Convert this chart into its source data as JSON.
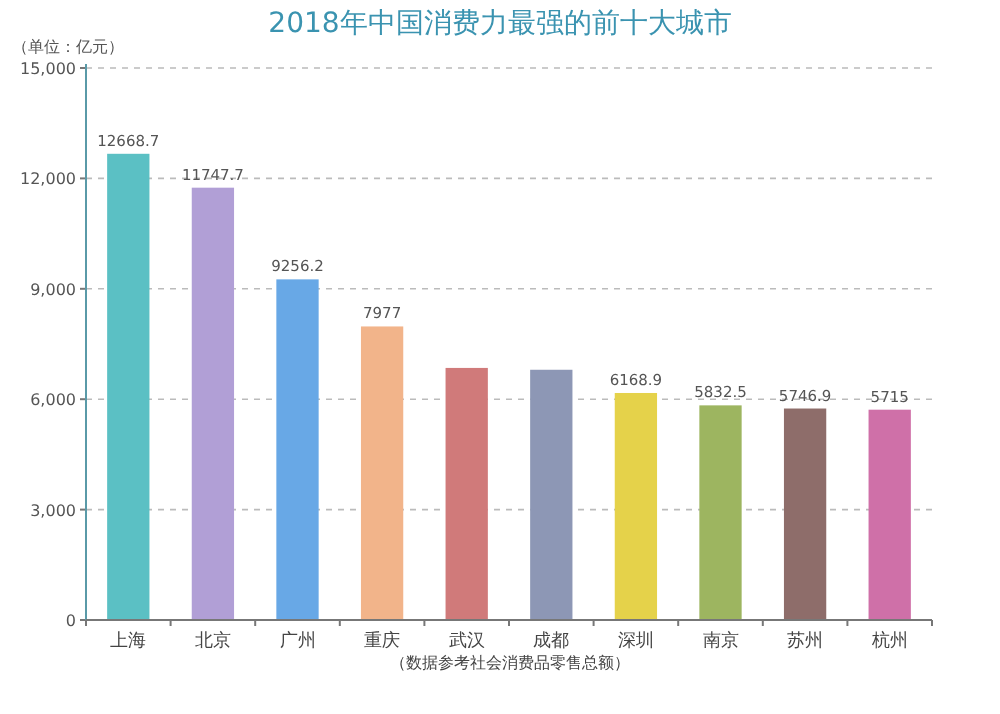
{
  "chart_data": {
    "type": "bar",
    "title": "2018年中国消费力最强的前十大城市",
    "ylabel": "（单位：亿元）",
    "categories": [
      "上海",
      "北京",
      "广州",
      "重庆",
      "武汉",
      "成都",
      "深圳",
      "南京",
      "苏州",
      "杭州"
    ],
    "values": [
      12668.7,
      11747.7,
      9256.2,
      7977,
      6850,
      6800,
      6168.9,
      5832.5,
      5746.9,
      5715
    ],
    "value_labels": [
      "12668.7",
      "11747.7",
      "9256.2",
      "7977",
      null,
      null,
      "6168.9",
      "5832.5",
      "5746.9",
      "5715"
    ],
    "colors": [
      "#5bc0c4",
      "#b19fd6",
      "#68a8e6",
      "#f2b48a",
      "#d07a7a",
      "#8d97b5",
      "#e5d24a",
      "#9db560",
      "#8e6d6a",
      "#cf70a8"
    ],
    "ylim": [
      0,
      15000
    ],
    "yticks": [
      {
        "value": 0,
        "label": "0"
      },
      {
        "value": 3000,
        "label": "3,000"
      },
      {
        "value": 6000,
        "label": "6,000"
      },
      {
        "value": 9000,
        "label": "9,000"
      },
      {
        "value": 12000,
        "label": "12,000"
      },
      {
        "value": 15000,
        "label": "15,000"
      }
    ],
    "grid": "y",
    "annotations": [
      "（数据参考社会消费品零售总额）"
    ]
  }
}
